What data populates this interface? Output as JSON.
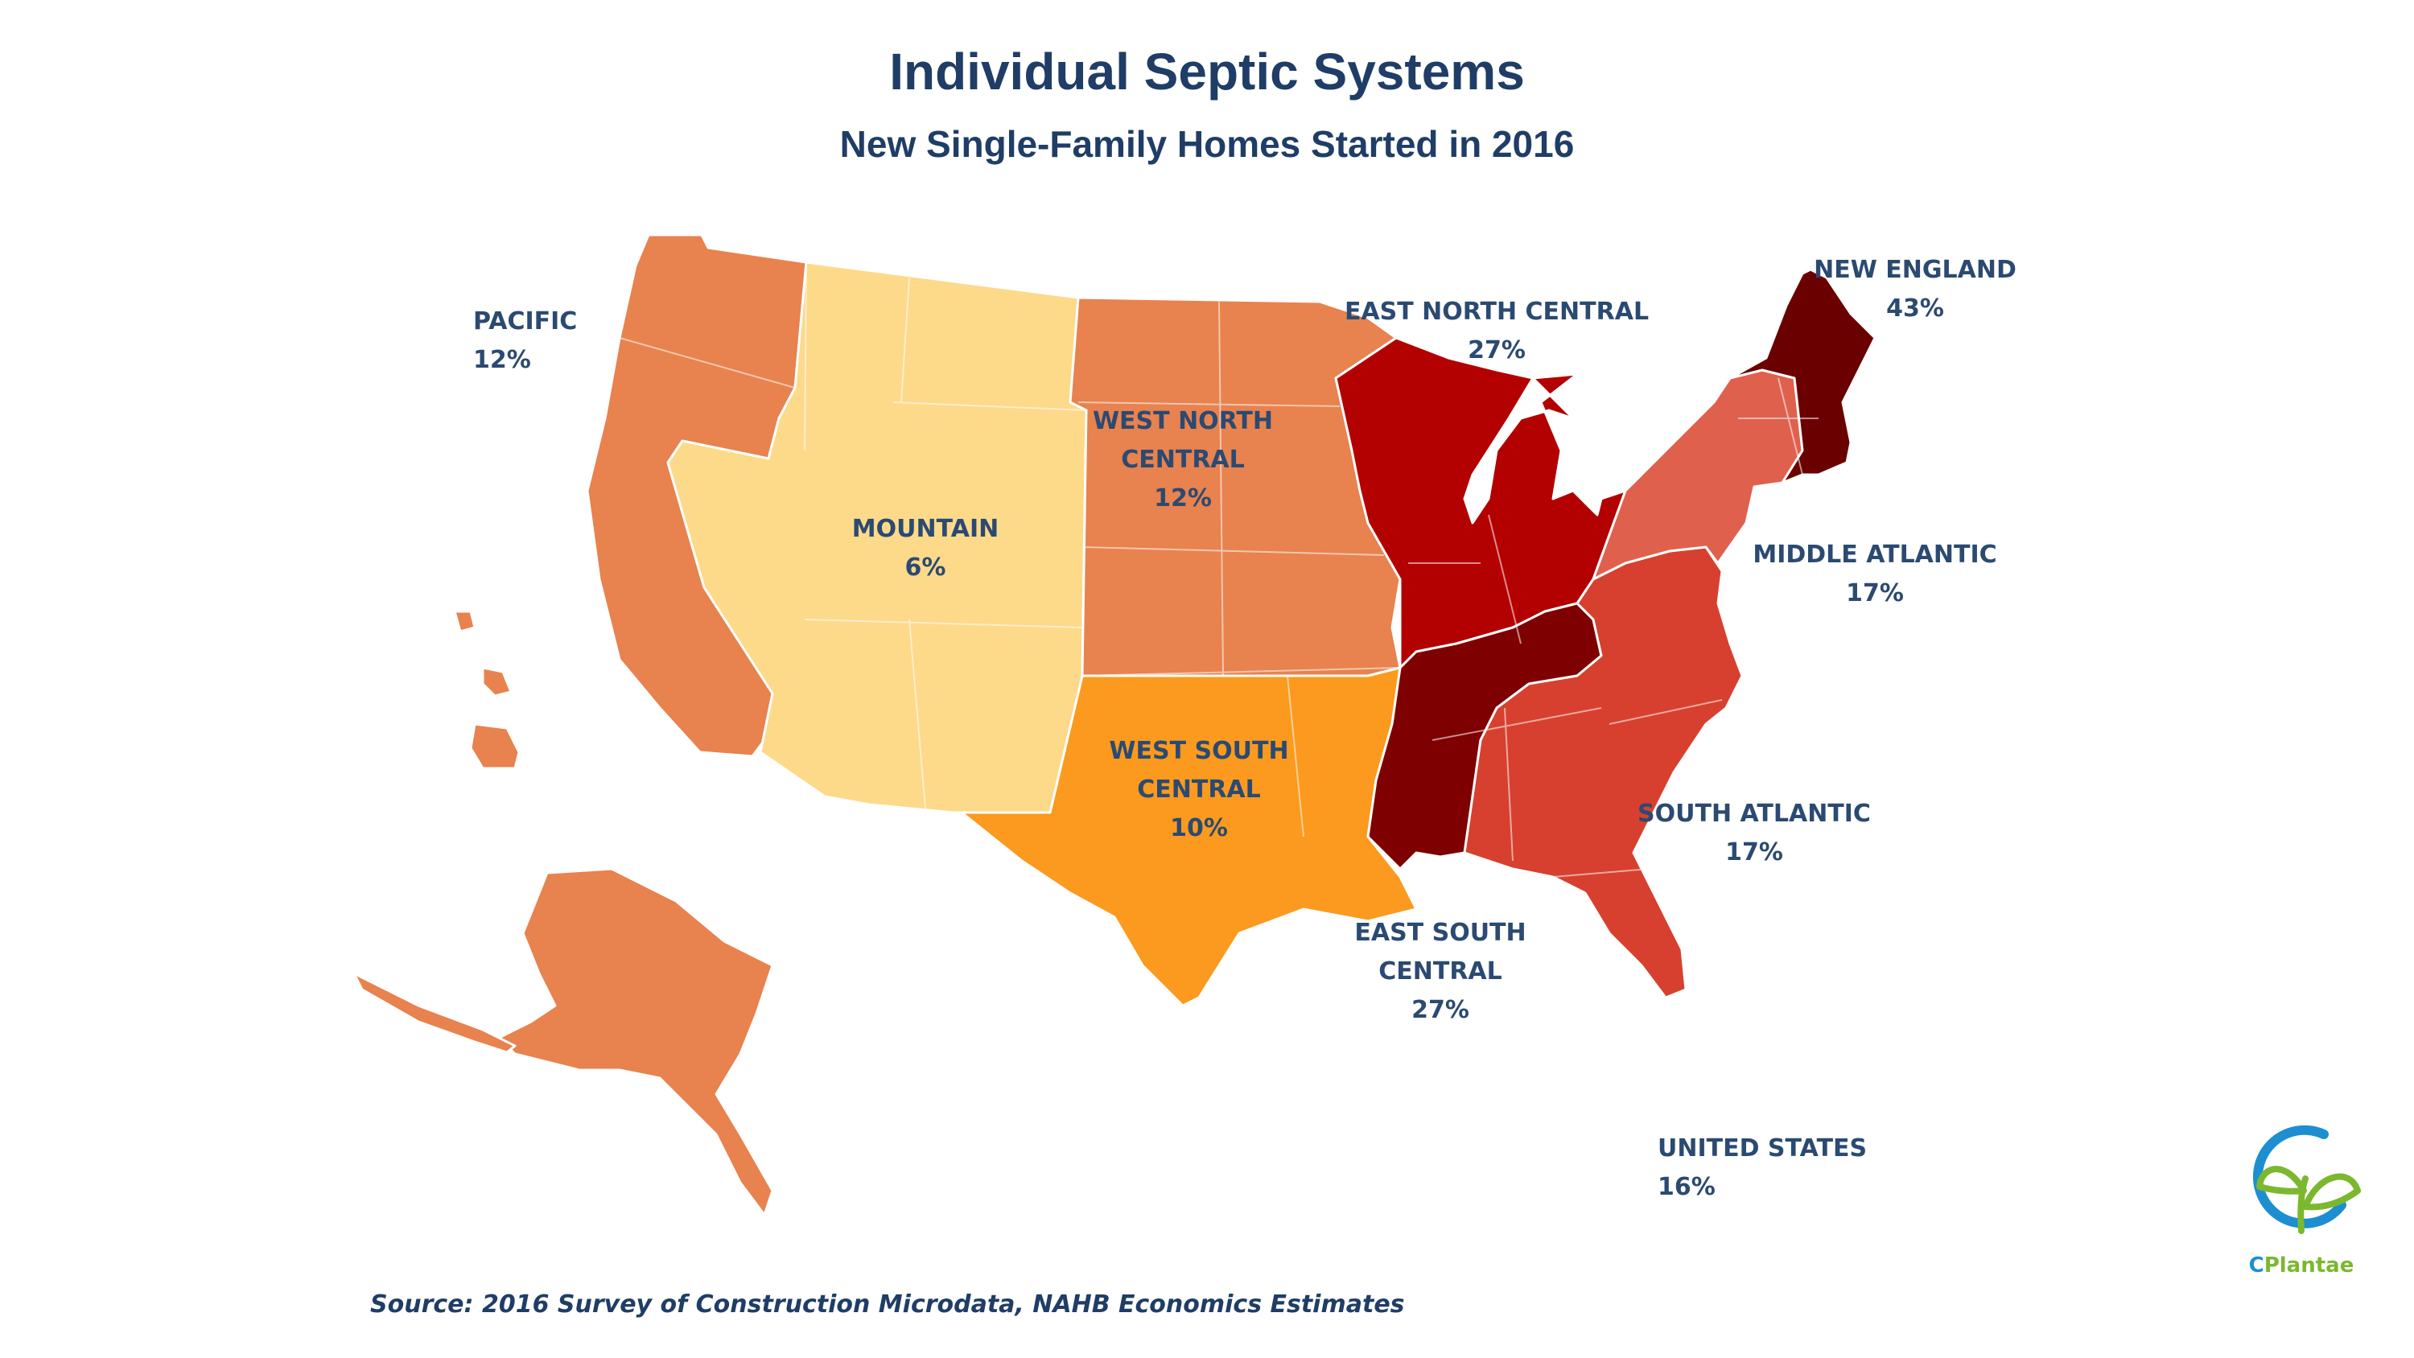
{
  "header": {
    "title": "Individual Septic Systems",
    "subtitle": "New Single-Family Homes Started in 2016"
  },
  "map": {
    "regions": [
      {
        "id": "pacific",
        "name": "PACIFIC",
        "value": "12%",
        "value_pct": 12,
        "color": "#e8824e"
      },
      {
        "id": "mountain",
        "name": "MOUNTAIN",
        "value": "6%",
        "value_pct": 6,
        "color": "#fdd98a"
      },
      {
        "id": "west_north_central",
        "name_line1": "WEST NORTH",
        "name_line2": "CENTRAL",
        "value": "12%",
        "value_pct": 12,
        "color": "#e8824e"
      },
      {
        "id": "west_south_central",
        "name_line1": "WEST SOUTH",
        "name_line2": "CENTRAL",
        "value": "10%",
        "value_pct": 10,
        "color": "#fb9a1e"
      },
      {
        "id": "east_north_central",
        "name": "EAST NORTH CENTRAL",
        "value": "27%",
        "value_pct": 27,
        "color": "#b30000"
      },
      {
        "id": "east_south_central",
        "name_line1": "EAST SOUTH",
        "name_line2": "CENTRAL",
        "value": "27%",
        "value_pct": 27,
        "color": "#7f0000"
      },
      {
        "id": "new_england",
        "name": "NEW ENGLAND",
        "value": "43%",
        "value_pct": 43,
        "color": "#6b0000"
      },
      {
        "id": "middle_atlantic",
        "name": "MIDDLE ATLANTIC",
        "value": "17%",
        "value_pct": 17,
        "color": "#e0604e"
      },
      {
        "id": "south_atlantic",
        "name": "SOUTH ATLANTIC",
        "value": "17%",
        "value_pct": 17,
        "color": "#d7402e"
      }
    ],
    "total": {
      "name": "UNITED STATES",
      "value": "16%",
      "value_pct": 16
    }
  },
  "source": "Source: 2016 Survey of Construction Microdata, NAHB Economics Estimates",
  "logo": {
    "prefix": "C",
    "text": "Plantae",
    "colors": {
      "ring": "#1d8fd1",
      "leaf": "#7cb82f"
    }
  }
}
